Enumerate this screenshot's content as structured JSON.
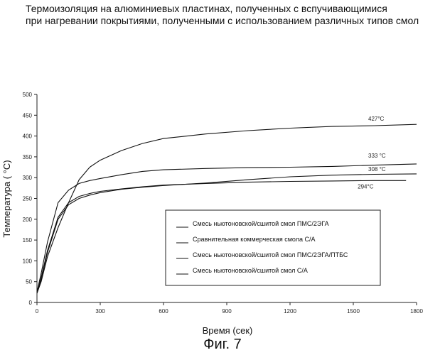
{
  "chart_data": {
    "type": "line",
    "title_lines": [
      "Термоизоляция на алюминиевых пластинах, полученных с вспучивающимися",
      "при нагревании покрытиями, полученными с использованием различных типов смол"
    ],
    "xlabel": "Время (сек)",
    "ylabel": "Температура ( °C)",
    "xlim": [
      0,
      1800
    ],
    "ylim": [
      0,
      500
    ],
    "xticks": [
      0,
      300,
      600,
      900,
      1200,
      1500,
      1800
    ],
    "yticks": [
      0,
      50,
      100,
      150,
      200,
      250,
      300,
      350,
      400,
      450,
      500
    ],
    "grid": false,
    "legend_position": "lower-right",
    "series": [
      {
        "name": "Смесь ньютоновской/сшитой смол ПМС/2ЭГА",
        "end_label": "427°C",
        "x": [
          0,
          20,
          50,
          100,
          150,
          200,
          250,
          300,
          400,
          500,
          600,
          800,
          1000,
          1200,
          1400,
          1600,
          1800
        ],
        "y": [
          22,
          50,
          110,
          180,
          240,
          295,
          325,
          342,
          365,
          382,
          394,
          405,
          413,
          419,
          423,
          425,
          428
        ]
      },
      {
        "name": "Сравнительная коммерческая смола С/А",
        "end_label": "333 °C",
        "x": [
          0,
          20,
          50,
          100,
          150,
          200,
          250,
          300,
          400,
          500,
          600,
          800,
          1000,
          1200,
          1400,
          1600,
          1800
        ],
        "y": [
          25,
          70,
          145,
          240,
          270,
          286,
          293,
          298,
          307,
          315,
          319,
          322,
          324,
          325,
          327,
          330,
          333
        ]
      },
      {
        "name": "Смесь ньютоновской/сшитой смол ПМС/2ЭГА/ПТБС",
        "end_label": "308 °C",
        "x": [
          0,
          20,
          50,
          100,
          150,
          200,
          250,
          300,
          400,
          500,
          600,
          800,
          1000,
          1200,
          1400,
          1600,
          1800
        ],
        "y": [
          25,
          55,
          120,
          200,
          235,
          250,
          258,
          264,
          272,
          277,
          281,
          287,
          295,
          302,
          306,
          308,
          309
        ]
      },
      {
        "name": "Смесь ньютоновской/сшитой смол С/А",
        "end_label": "294°C",
        "x": [
          0,
          20,
          50,
          100,
          150,
          200,
          250,
          300,
          400,
          500,
          600,
          800,
          1000,
          1200,
          1400,
          1600,
          1750
        ],
        "y": [
          22,
          60,
          125,
          205,
          240,
          255,
          262,
          267,
          273,
          278,
          282,
          286,
          289,
          291,
          292,
          293,
          293
        ]
      }
    ]
  },
  "figure_caption": "Фиг. 7"
}
